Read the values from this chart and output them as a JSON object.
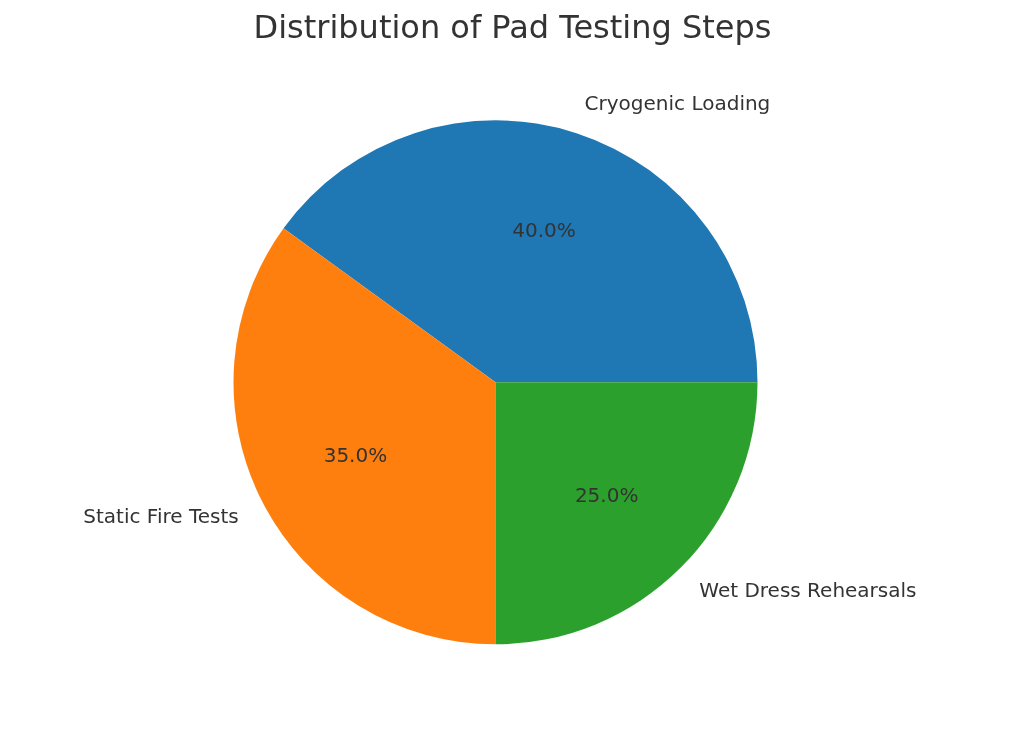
{
  "chart_data": {
    "type": "pie",
    "title": "Distribution of Pad Testing Steps",
    "categories": [
      "Cryogenic Loading",
      "Static Fire Tests",
      "Wet Dress Rehearsals"
    ],
    "values": [
      40,
      35,
      25
    ],
    "colors": [
      "#1f77b4",
      "#ff7f0e",
      "#2ca02c"
    ],
    "value_labels": [
      "40.0%",
      "35.0%",
      "25.0%"
    ]
  }
}
